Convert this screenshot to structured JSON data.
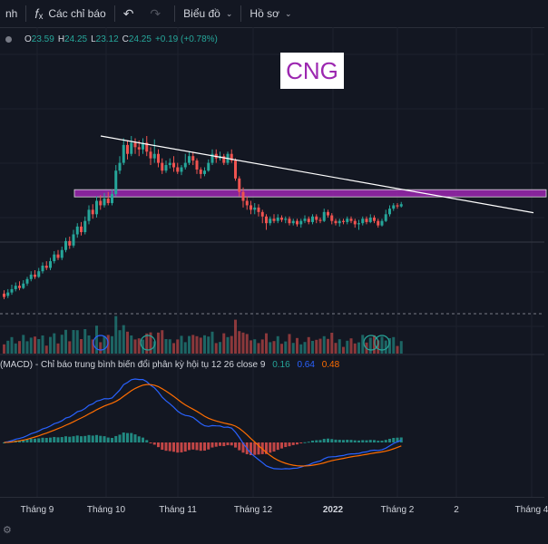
{
  "toolbar": {
    "interval_label": "nh",
    "indicators_icon": "fx-icon",
    "indicators_label": "Các chỉ báo",
    "undo_icon": "undo-icon",
    "redo_icon": "redo-icon",
    "chart_type_label": "Biểu đồ",
    "profile_label": "Hồ sơ"
  },
  "ohlc": {
    "o_key": "O",
    "o": "23.59",
    "h_key": "H",
    "h": "24.25",
    "l_key": "L",
    "l": "23.12",
    "c_key": "C",
    "c": "24.25",
    "change": "+0.19 (+0.78%)"
  },
  "annotation": {
    "text": "CNG",
    "color": "#9c27b0"
  },
  "macd": {
    "title": "(MACD) - Chỉ báo trung bình biến đổi phân kỳ hội tụ",
    "params": "12 26 close 9",
    "histogram_value": "0.16",
    "macd_value": "0.64",
    "signal_value": "0.48"
  },
  "time_axis": {
    "ticks": [
      {
        "label": "Tháng 9",
        "bold": false
      },
      {
        "label": "Tháng 10",
        "bold": false
      },
      {
        "label": "Tháng 11",
        "bold": false
      },
      {
        "label": "Tháng 12",
        "bold": false
      },
      {
        "label": "2022",
        "bold": true
      },
      {
        "label": "Tháng 2",
        "bold": false
      },
      {
        "label": "2",
        "bold": false
      },
      {
        "label": "Tháng 4",
        "bold": false
      }
    ]
  },
  "colors": {
    "background": "#131722",
    "up": "#26a69a",
    "down": "#ef5350",
    "zone": "#9c27b0",
    "trendline": "#ffffff",
    "macd_line": "#2962ff",
    "signal_line": "#ff6d00"
  },
  "chart_data": {
    "type": "candlestick",
    "series_note": "",
    "candles": [
      [
        0.95,
        0.92,
        0.98,
        0.9
      ],
      [
        0.93,
        0.96,
        0.99,
        0.91
      ],
      [
        0.96,
        0.99,
        1.03,
        0.94
      ],
      [
        0.99,
        1.02,
        1.05,
        0.97
      ],
      [
        1.02,
        1.0,
        1.06,
        0.98
      ],
      [
        1.0,
        1.04,
        1.07,
        0.99
      ],
      [
        1.04,
        1.08,
        1.1,
        1.02
      ],
      [
        1.08,
        1.12,
        1.15,
        1.06
      ],
      [
        1.12,
        1.1,
        1.16,
        1.08
      ],
      [
        1.1,
        1.15,
        1.18,
        1.09
      ],
      [
        1.15,
        1.2,
        1.23,
        1.13
      ],
      [
        1.2,
        1.18,
        1.24,
        1.16
      ],
      [
        1.18,
        1.24,
        1.27,
        1.16
      ],
      [
        1.24,
        1.3,
        1.33,
        1.22
      ],
      [
        1.3,
        1.27,
        1.34,
        1.25
      ],
      [
        1.27,
        1.34,
        1.37,
        1.25
      ],
      [
        1.34,
        1.42,
        1.45,
        1.32
      ],
      [
        1.42,
        1.38,
        1.46,
        1.35
      ],
      [
        1.38,
        1.48,
        1.52,
        1.36
      ],
      [
        1.48,
        1.55,
        1.58,
        1.45
      ],
      [
        1.55,
        1.5,
        1.59,
        1.47
      ],
      [
        1.5,
        1.6,
        1.64,
        1.48
      ],
      [
        1.6,
        1.7,
        1.74,
        1.57
      ],
      [
        1.7,
        1.66,
        1.75,
        1.62
      ],
      [
        1.66,
        1.78,
        1.82,
        1.63
      ],
      [
        1.78,
        1.74,
        1.83,
        1.7
      ],
      [
        1.74,
        1.8,
        1.85,
        1.72
      ],
      [
        1.8,
        1.76,
        1.86,
        1.74
      ],
      [
        1.76,
        1.84,
        1.88,
        1.74
      ],
      [
        1.84,
        2.05,
        2.1,
        1.82
      ],
      [
        2.05,
        2.12,
        2.18,
        2.02
      ],
      [
        2.12,
        2.28,
        2.34,
        2.1
      ],
      [
        2.28,
        2.2,
        2.32,
        2.15
      ],
      [
        2.2,
        2.3,
        2.36,
        2.18
      ],
      [
        2.3,
        2.26,
        2.34,
        2.2
      ],
      [
        2.26,
        2.24,
        2.32,
        2.18
      ],
      [
        2.24,
        2.3,
        2.34,
        2.2
      ],
      [
        2.3,
        2.22,
        2.36,
        2.18
      ],
      [
        2.22,
        2.16,
        2.26,
        2.1
      ],
      [
        2.16,
        2.2,
        2.33,
        2.12
      ],
      [
        2.2,
        2.12,
        2.24,
        2.08
      ],
      [
        2.12,
        2.05,
        2.16,
        2.02
      ],
      [
        2.05,
        2.1,
        2.14,
        2.03
      ],
      [
        2.1,
        2.12,
        2.16,
        2.07
      ],
      [
        2.12,
        2.08,
        2.18,
        2.04
      ],
      [
        2.08,
        2.04,
        2.12,
        2.02
      ],
      [
        2.04,
        2.08,
        2.1,
        2.01
      ],
      [
        2.08,
        2.12,
        2.2,
        2.06
      ],
      [
        2.12,
        2.18,
        2.22,
        2.1
      ],
      [
        2.18,
        2.14,
        2.22,
        2.1
      ],
      [
        2.14,
        2.06,
        2.16,
        2.02
      ],
      [
        2.06,
        2.02,
        2.08,
        1.98
      ],
      [
        2.02,
        2.05,
        2.08,
        2.0
      ],
      [
        2.05,
        2.12,
        2.15,
        2.04
      ],
      [
        2.12,
        2.2,
        2.24,
        2.1
      ],
      [
        2.2,
        2.16,
        2.24,
        2.12
      ],
      [
        2.16,
        2.18,
        2.22,
        2.14
      ],
      [
        2.18,
        2.12,
        2.2,
        2.1
      ],
      [
        2.12,
        2.2,
        2.22,
        2.1
      ],
      [
        2.2,
        2.14,
        2.24,
        2.12
      ],
      [
        2.14,
        1.98,
        2.16,
        1.96
      ],
      [
        1.98,
        1.86,
        2.0,
        1.82
      ],
      [
        1.86,
        1.78,
        1.9,
        1.72
      ],
      [
        1.78,
        1.74,
        1.82,
        1.7
      ],
      [
        1.74,
        1.7,
        1.78,
        1.66
      ],
      [
        1.7,
        1.72,
        1.76,
        1.66
      ],
      [
        1.72,
        1.68,
        1.75,
        1.64
      ],
      [
        1.68,
        1.64,
        1.7,
        1.58
      ],
      [
        1.64,
        1.58,
        1.66,
        1.52
      ],
      [
        1.58,
        1.62,
        1.64,
        1.56
      ],
      [
        1.62,
        1.6,
        1.66,
        1.58
      ],
      [
        1.6,
        1.63,
        1.66,
        1.58
      ],
      [
        1.63,
        1.61,
        1.65,
        1.59
      ],
      [
        1.61,
        1.62,
        1.64,
        1.58
      ],
      [
        1.62,
        1.58,
        1.64,
        1.56
      ],
      [
        1.58,
        1.6,
        1.62,
        1.56
      ],
      [
        1.6,
        1.57,
        1.62,
        1.55
      ],
      [
        1.57,
        1.6,
        1.62,
        1.54
      ],
      [
        1.6,
        1.62,
        1.65,
        1.58
      ],
      [
        1.62,
        1.59,
        1.64,
        1.57
      ],
      [
        1.59,
        1.64,
        1.66,
        1.57
      ],
      [
        1.64,
        1.61,
        1.66,
        1.58
      ],
      [
        1.61,
        1.6,
        1.63,
        1.58
      ],
      [
        1.6,
        1.68,
        1.71,
        1.59
      ],
      [
        1.68,
        1.65,
        1.7,
        1.63
      ],
      [
        1.65,
        1.6,
        1.67,
        1.57
      ],
      [
        1.6,
        1.58,
        1.62,
        1.56
      ],
      [
        1.58,
        1.6,
        1.62,
        1.55
      ],
      [
        1.6,
        1.59,
        1.62,
        1.57
      ],
      [
        1.59,
        1.62,
        1.64,
        1.57
      ],
      [
        1.62,
        1.6,
        1.64,
        1.58
      ],
      [
        1.6,
        1.57,
        1.62,
        1.54
      ],
      [
        1.57,
        1.58,
        1.61,
        1.52
      ],
      [
        1.58,
        1.62,
        1.64,
        1.56
      ],
      [
        1.62,
        1.59,
        1.64,
        1.57
      ],
      [
        1.59,
        1.63,
        1.66,
        1.58
      ],
      [
        1.63,
        1.6,
        1.65,
        1.58
      ],
      [
        1.6,
        1.56,
        1.62,
        1.54
      ],
      [
        1.56,
        1.6,
        1.62,
        1.55
      ],
      [
        1.6,
        1.66,
        1.7,
        1.59
      ],
      [
        1.66,
        1.71,
        1.74,
        1.64
      ],
      [
        1.71,
        1.74,
        1.76,
        1.69
      ],
      [
        1.74,
        1.73,
        1.76,
        1.71
      ],
      [
        1.73,
        1.75,
        1.77,
        1.72
      ]
    ],
    "trendline": [
      [
        0.185,
        1.0
      ],
      [
        0.98,
        0.53
      ]
    ],
    "resistance_zone": [
      1.82,
      1.88
    ]
  }
}
